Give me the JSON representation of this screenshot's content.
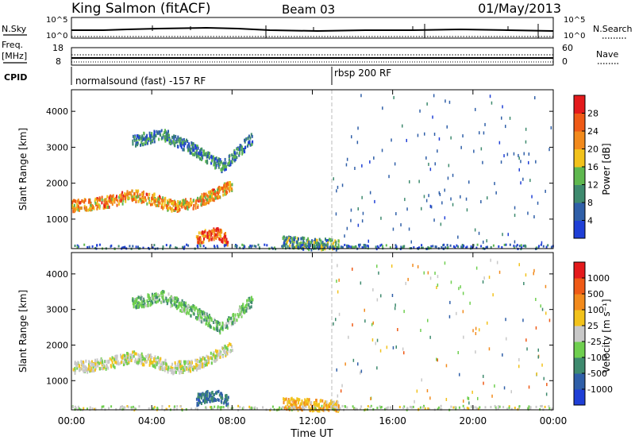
{
  "header": {
    "station": "King Salmon (fitACF)",
    "beam": "Beam 03",
    "date": "01/May/2013"
  },
  "top_panels": {
    "nsky_label": "N.Sky",
    "nsearch_label": "N.Search",
    "noise_ticks": [
      "10^5",
      "10^0"
    ],
    "freq_label_1": "Freq.",
    "freq_label_2": "[MHz]",
    "freq_ticks": [
      "18",
      "8"
    ],
    "nave_label": "Nave",
    "nave_ticks": [
      "60",
      "0"
    ],
    "cpid_label": "CPID",
    "cpid_1": "normalsound (fast) -157 RF",
    "cpid_2": "rbsp 200 RF"
  },
  "colors": {
    "power_scale": [
      "#1f3fd6",
      "#2f5fa8",
      "#3e8a6e",
      "#5fb84f",
      "#f2c21b",
      "#f28a1c",
      "#ef5a16",
      "#e41a1c"
    ],
    "velocity_scale": [
      "#e41a1c",
      "#ef5a16",
      "#f28a1c",
      "#f2c21b",
      "#c8c8c8",
      "#6fcf4f",
      "#3e8a6e",
      "#2f5fa8",
      "#1f3fd6"
    ]
  },
  "chart_data": [
    {
      "type": "heatmap",
      "title": "",
      "xlabel": "",
      "ylabel": "Slant Range [km]",
      "x_ticks": [
        "00:00",
        "04:00",
        "08:00",
        "12:00",
        "16:00",
        "20:00",
        "00:00"
      ],
      "x_range_hours": [
        0,
        24
      ],
      "ylim": [
        180,
        4600
      ],
      "y_ticks": [
        1000,
        2000,
        3000,
        4000
      ],
      "grid": false,
      "colorbar": {
        "label": "Power [dB]",
        "ticks": [
          "4",
          "8",
          "12",
          "16",
          "20",
          "24",
          "28"
        ],
        "range": [
          0,
          30
        ]
      },
      "features": [
        {
          "hours": [
            0.0,
            8.0
          ],
          "center_km": [
            1400,
            1450,
            1550,
            1700,
            1600,
            1400,
            1450,
            1700,
            2000
          ],
          "power_db": 20
        },
        {
          "hours": [
            3.0,
            9.0
          ],
          "center_km": [
            3200,
            3400,
            3000,
            2500,
            3300
          ],
          "power_db": 8
        },
        {
          "hours": [
            6.2,
            7.8
          ],
          "center_km": [
            500,
            600,
            650,
            450
          ],
          "power_db": 24
        },
        {
          "hours": [
            10.5,
            13.3
          ],
          "center_km": [
            400,
            350,
            300
          ],
          "power_db": 10
        },
        {
          "hours": [
            0.0,
            24.0
          ],
          "center_km": [
            260
          ],
          "power_db": 6
        }
      ]
    },
    {
      "type": "heatmap",
      "title": "",
      "xlabel": "Time UT",
      "ylabel": "Slant Range [km]",
      "x_ticks": [
        "00:00",
        "04:00",
        "08:00",
        "12:00",
        "16:00",
        "20:00",
        "00:00"
      ],
      "x_range_hours": [
        0,
        24
      ],
      "ylim": [
        180,
        4600
      ],
      "y_ticks": [
        1000,
        2000,
        3000,
        4000
      ],
      "grid": false,
      "colorbar": {
        "label": "Velocity [m s⁻¹]",
        "ticks": [
          "1000",
          "500",
          "100",
          "25",
          "-25",
          "-100",
          "-500",
          "-1000"
        ],
        "range": [
          -1200,
          1200
        ]
      },
      "features": [
        {
          "hours": [
            0.0,
            8.0
          ],
          "center_km": [
            1400,
            1450,
            1550,
            1700,
            1600,
            1400,
            1450,
            1700,
            2000
          ],
          "velocity": 0
        },
        {
          "hours": [
            3.0,
            9.0
          ],
          "center_km": [
            3200,
            3400,
            3000,
            2500,
            3300
          ],
          "velocity": -300
        },
        {
          "hours": [
            6.2,
            7.8
          ],
          "center_km": [
            500,
            600,
            650,
            450
          ],
          "velocity": -700
        },
        {
          "hours": [
            10.5,
            13.3
          ],
          "center_km": [
            400,
            350,
            300
          ],
          "velocity": 300
        },
        {
          "hours": [
            0.0,
            24.0
          ],
          "center_km": [
            260
          ],
          "velocity": -50
        }
      ]
    }
  ]
}
